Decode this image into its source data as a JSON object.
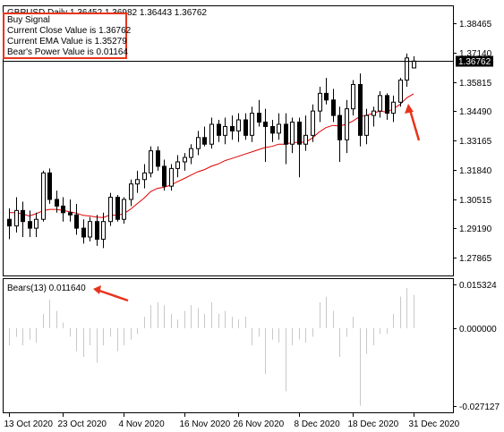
{
  "header": {
    "symbol_line": "GBPUSD,Daily  1.36452 1.36982 1.36443 1.36762"
  },
  "signal": {
    "line1": "Buy Signal",
    "line2": "Current Close Value is 1.36762",
    "line3": "Current EMA Value is 1.35279",
    "line4": "Bear's Power Value is 0.01164"
  },
  "indicator_label": "Bears(13) 0.011640",
  "colors": {
    "candle_up": "#ffffff",
    "candle_down": "#000000",
    "ema": "#e00000",
    "histogram": "#c8c8c8",
    "annotation": "#e8341c"
  },
  "chart_data": [
    {
      "type": "candlestick",
      "title": "GBPUSD,Daily",
      "y_ticks": [
        "1.38465",
        "1.37140",
        "1.35815",
        "1.34490",
        "1.33165",
        "1.31840",
        "1.30515",
        "1.29190",
        "1.27865"
      ],
      "ylim": [
        1.271,
        1.392
      ],
      "current_price": "1.36762",
      "candles": [
        [
          1.296,
          1.301,
          1.287,
          1.293
        ],
        [
          1.293,
          1.306,
          1.29,
          1.3
        ],
        [
          1.3,
          1.304,
          1.288,
          1.295
        ],
        [
          1.295,
          1.3,
          1.288,
          1.292
        ],
        [
          1.292,
          1.299,
          1.288,
          1.296
        ],
        [
          1.296,
          1.318,
          1.295,
          1.317
        ],
        [
          1.317,
          1.319,
          1.303,
          1.305
        ],
        [
          1.305,
          1.309,
          1.299,
          1.302
        ],
        [
          1.302,
          1.306,
          1.295,
          1.299
        ],
        [
          1.299,
          1.305,
          1.295,
          1.298
        ],
        [
          1.298,
          1.303,
          1.289,
          1.292
        ],
        [
          1.292,
          1.296,
          1.285,
          1.288
        ],
        [
          1.288,
          1.297,
          1.286,
          1.295
        ],
        [
          1.295,
          1.298,
          1.284,
          1.287
        ],
        [
          1.287,
          1.299,
          1.283,
          1.295
        ],
        [
          1.295,
          1.308,
          1.293,
          1.306
        ],
        [
          1.306,
          1.307,
          1.295,
          1.296
        ],
        [
          1.296,
          1.306,
          1.294,
          1.305
        ],
        [
          1.305,
          1.314,
          1.302,
          1.312
        ],
        [
          1.312,
          1.318,
          1.308,
          1.314
        ],
        [
          1.314,
          1.321,
          1.31,
          1.317
        ],
        [
          1.317,
          1.329,
          1.315,
          1.327
        ],
        [
          1.327,
          1.329,
          1.318,
          1.32
        ],
        [
          1.32,
          1.323,
          1.309,
          1.311
        ],
        [
          1.311,
          1.321,
          1.309,
          1.319
        ],
        [
          1.319,
          1.325,
          1.315,
          1.322
        ],
        [
          1.322,
          1.326,
          1.318,
          1.324
        ],
        [
          1.324,
          1.33,
          1.321,
          1.328
        ],
        [
          1.328,
          1.336,
          1.325,
          1.333
        ],
        [
          1.333,
          1.338,
          1.329,
          1.33
        ],
        [
          1.33,
          1.342,
          1.328,
          1.339
        ],
        [
          1.339,
          1.341,
          1.331,
          1.334
        ],
        [
          1.334,
          1.342,
          1.33,
          1.338
        ],
        [
          1.338,
          1.343,
          1.332,
          1.336
        ],
        [
          1.336,
          1.344,
          1.331,
          1.341
        ],
        [
          1.341,
          1.344,
          1.332,
          1.334
        ],
        [
          1.334,
          1.347,
          1.331,
          1.344
        ],
        [
          1.344,
          1.35,
          1.338,
          1.34
        ],
        [
          1.34,
          1.346,
          1.322,
          1.338
        ],
        [
          1.338,
          1.341,
          1.331,
          1.335
        ],
        [
          1.335,
          1.344,
          1.332,
          1.339
        ],
        [
          1.339,
          1.344,
          1.321,
          1.33
        ],
        [
          1.33,
          1.342,
          1.326,
          1.34
        ],
        [
          1.34,
          1.342,
          1.315,
          1.33
        ],
        [
          1.33,
          1.343,
          1.327,
          1.334
        ],
        [
          1.334,
          1.348,
          1.331,
          1.345
        ],
        [
          1.345,
          1.356,
          1.34,
          1.353
        ],
        [
          1.353,
          1.36,
          1.348,
          1.35
        ],
        [
          1.35,
          1.355,
          1.34,
          1.343
        ],
        [
          1.343,
          1.347,
          1.322,
          1.332
        ],
        [
          1.332,
          1.35,
          1.326,
          1.346
        ],
        [
          1.346,
          1.359,
          1.343,
          1.357
        ],
        [
          1.357,
          1.362,
          1.329,
          1.334
        ],
        [
          1.334,
          1.346,
          1.33,
          1.343
        ],
        [
          1.343,
          1.347,
          1.338,
          1.345
        ],
        [
          1.345,
          1.354,
          1.342,
          1.352
        ],
        [
          1.352,
          1.353,
          1.341,
          1.344
        ],
        [
          1.344,
          1.352,
          1.34,
          1.349
        ],
        [
          1.349,
          1.36,
          1.347,
          1.359
        ],
        [
          1.359,
          1.371,
          1.356,
          1.369
        ],
        [
          1.3645,
          1.3698,
          1.3644,
          1.3676
        ]
      ],
      "ema": [
        1.299,
        1.299,
        1.2985,
        1.2975,
        1.2985,
        1.2998,
        1.3005,
        1.3005,
        1.3,
        1.2994,
        1.2988,
        1.2978,
        1.2975,
        1.297,
        1.2968,
        1.298,
        1.2978,
        1.2985,
        1.3005,
        1.303,
        1.3055,
        1.3085,
        1.31,
        1.3105,
        1.3115,
        1.313,
        1.3145,
        1.316,
        1.3175,
        1.3185,
        1.32,
        1.321,
        1.3225,
        1.3235,
        1.3245,
        1.3255,
        1.3265,
        1.3275,
        1.3285,
        1.329,
        1.33,
        1.33,
        1.3308,
        1.3308,
        1.331,
        1.3328,
        1.3355,
        1.3375,
        1.3385,
        1.3382,
        1.339,
        1.3405,
        1.3425,
        1.343,
        1.344,
        1.345,
        1.3445,
        1.346,
        1.348,
        1.351,
        1.3528
      ]
    },
    {
      "type": "bar",
      "title": "Bears(13) 0.011640",
      "y_ticks": [
        "0.015324",
        "0.000000",
        "-0.027127"
      ],
      "ylim": [
        -0.029,
        0.0168
      ],
      "values": [
        -0.006,
        -0.003,
        -0.006,
        -0.004,
        -0.005,
        0.005,
        0.01,
        0.006,
        0.002,
        -0.003,
        -0.008,
        -0.01,
        -0.006,
        -0.012,
        -0.006,
        -0.003,
        -0.008,
        -0.006,
        -0.004,
        -0.002,
        0.004,
        0.008,
        0.009,
        0.008,
        0.005,
        0.003,
        0.006,
        0.008,
        0.007,
        0.005,
        0.009,
        0.005,
        0.006,
        0.004,
        0.003,
        0.004,
        -0.006,
        -0.003,
        -0.016,
        -0.004,
        -0.005,
        -0.022,
        -0.006,
        -0.004,
        -0.005,
        -0.003,
        0.009,
        0.011,
        0.006,
        -0.01,
        -0.003,
        0.004,
        -0.027,
        -0.009,
        -0.006,
        -0.002,
        -0.002,
        0.005,
        0.011,
        0.014,
        0.0116
      ]
    }
  ],
  "x_axis": {
    "labels": [
      "13 Oct 2020",
      "23 Oct 2020",
      "4 Nov 2020",
      "16 Nov 2020",
      "26 Nov 2020",
      "8 Dec 2020",
      "18 Dec 2020",
      "31 Dec 2020"
    ],
    "positions": [
      0,
      8,
      17,
      26,
      34,
      43,
      51,
      60
    ]
  }
}
